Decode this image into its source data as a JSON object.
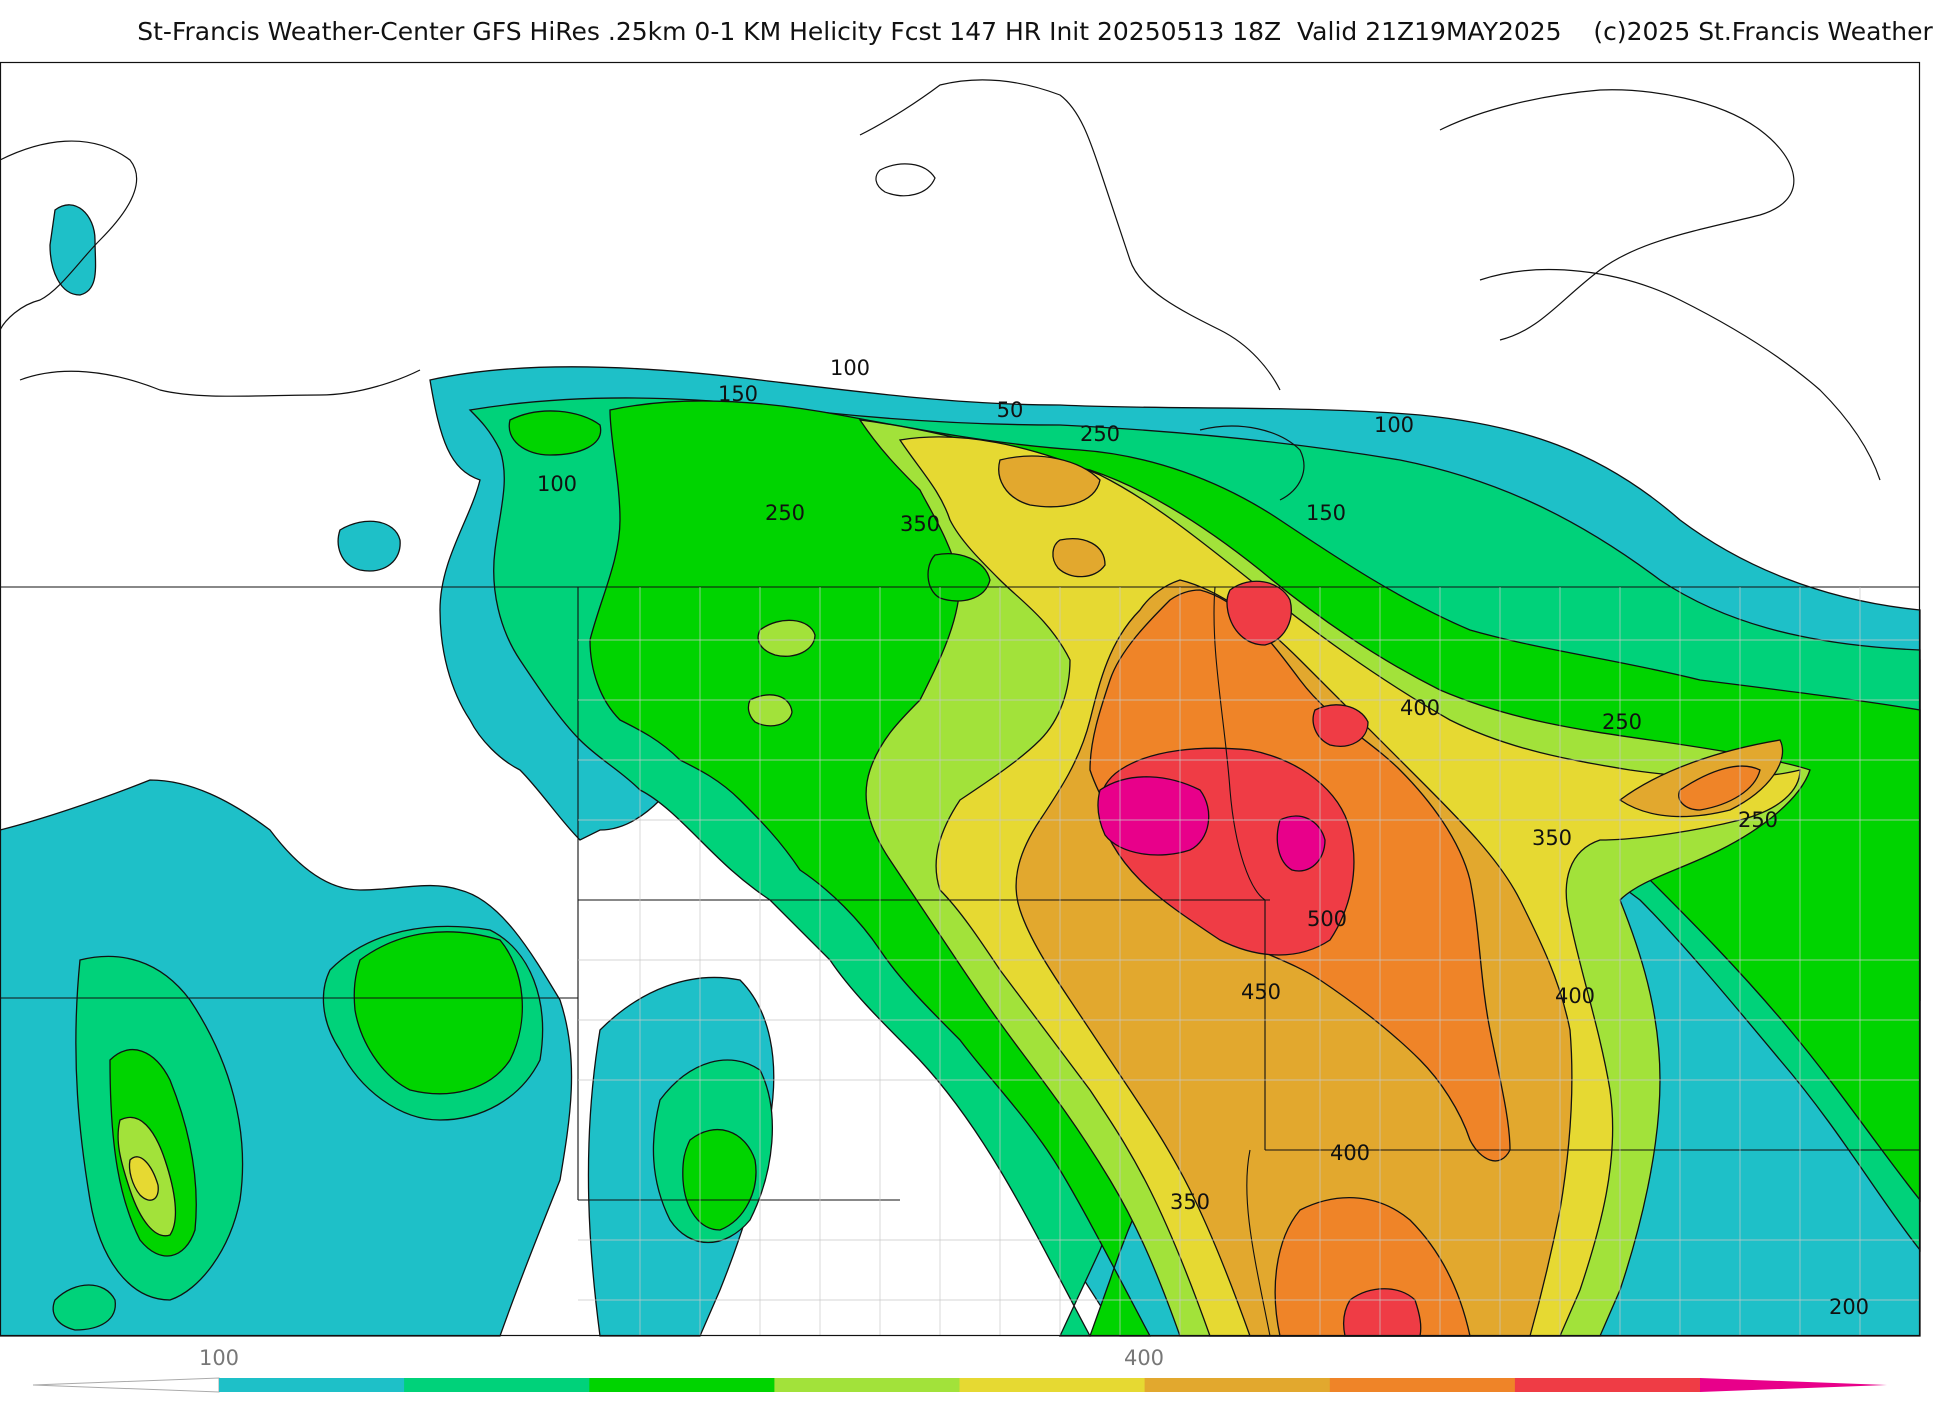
{
  "title": "St-Francis Weather-Center GFS HiRes .25km 0-1 KM Helicity Fcst 147 HR Init 20250513 18Z  Valid 21Z19MAY2025    (c)2025 St.Francis Weather",
  "colorbar": {
    "tick_labels": [
      "100",
      "400"
    ],
    "colors": [
      "#1ec0c8",
      "#00d27a",
      "#00d400",
      "#a2e23a",
      "#e6d932",
      "#e2a82e",
      "#ef8428",
      "#ef3c45",
      "#e8008a"
    ]
  },
  "contour_labels": [
    "100",
    "150",
    "50",
    "250",
    "100",
    "100",
    "250",
    "350",
    "150",
    "400",
    "250",
    "350",
    "250",
    "500",
    "450",
    "400",
    "400",
    "350",
    "200"
  ],
  "palette": {
    "land_lines": "#111111",
    "county_lines": "#c8c8c8",
    "teal": "#1ec0c8",
    "seagreen": "#00d27a",
    "green": "#00d400",
    "yellowgreen": "#a2e23a",
    "yellow": "#e6d932",
    "gold": "#e2a82e",
    "orange": "#ef8428",
    "red": "#ef3c45",
    "magenta": "#e8008a"
  }
}
